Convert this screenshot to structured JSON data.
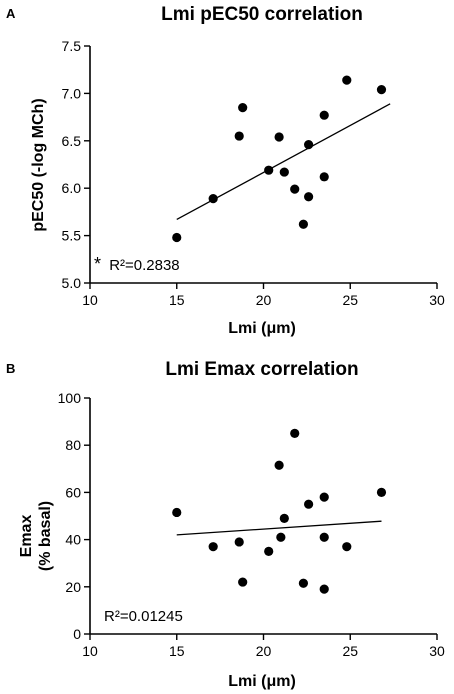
{
  "chart_data": [
    {
      "panel": "A",
      "type": "scatter",
      "title": "Lmi pEC50 correlation",
      "xlabel": "Lmi (μm)",
      "ylabel": "pEC50 (-log MCh)",
      "xlim": [
        10,
        30
      ],
      "ylim": [
        5.0,
        7.5
      ],
      "xticks": [
        "10",
        "15",
        "20",
        "25",
        "30"
      ],
      "yticks": [
        "5.0",
        "5.5",
        "6.0",
        "6.5",
        "7.0",
        "7.5"
      ],
      "points": [
        {
          "x": 15.0,
          "y": 5.48
        },
        {
          "x": 17.1,
          "y": 5.89
        },
        {
          "x": 18.6,
          "y": 6.55
        },
        {
          "x": 18.8,
          "y": 6.85
        },
        {
          "x": 20.3,
          "y": 6.19
        },
        {
          "x": 20.9,
          "y": 6.54
        },
        {
          "x": 21.2,
          "y": 6.17
        },
        {
          "x": 21.8,
          "y": 5.99
        },
        {
          "x": 22.3,
          "y": 5.62
        },
        {
          "x": 22.6,
          "y": 6.46
        },
        {
          "x": 22.6,
          "y": 5.91
        },
        {
          "x": 23.5,
          "y": 6.77
        },
        {
          "x": 23.5,
          "y": 6.12
        },
        {
          "x": 24.8,
          "y": 7.14
        },
        {
          "x": 26.8,
          "y": 7.04
        }
      ],
      "fit_line": {
        "x": [
          15.0,
          27.3
        ],
        "y": [
          5.67,
          6.89
        ]
      },
      "annotation_prefix": "*",
      "annotation": "R²=0.2838"
    },
    {
      "panel": "B",
      "type": "scatter",
      "title": "Lmi Emax correlation",
      "xlabel": "Lmi (μm)",
      "ylabel": "Emax",
      "ylabel_line2": "(% basal)",
      "xlim": [
        10,
        30
      ],
      "ylim": [
        0,
        100
      ],
      "xticks": [
        "10",
        "15",
        "20",
        "25",
        "30"
      ],
      "yticks": [
        "0",
        "20",
        "40",
        "60",
        "80",
        "100"
      ],
      "points": [
        {
          "x": 15.0,
          "y": 51.5
        },
        {
          "x": 17.1,
          "y": 37.0
        },
        {
          "x": 18.6,
          "y": 39.0
        },
        {
          "x": 18.8,
          "y": 22.0
        },
        {
          "x": 20.3,
          "y": 35.0
        },
        {
          "x": 20.9,
          "y": 71.5
        },
        {
          "x": 21.0,
          "y": 41.0
        },
        {
          "x": 21.2,
          "y": 49.0
        },
        {
          "x": 21.8,
          "y": 85.0
        },
        {
          "x": 22.3,
          "y": 21.5
        },
        {
          "x": 22.6,
          "y": 55.0
        },
        {
          "x": 23.5,
          "y": 58.0
        },
        {
          "x": 23.5,
          "y": 41.0
        },
        {
          "x": 23.5,
          "y": 19.0
        },
        {
          "x": 24.8,
          "y": 37.0
        },
        {
          "x": 26.8,
          "y": 60.0
        }
      ],
      "fit_line": {
        "x": [
          15.0,
          26.8
        ],
        "y": [
          42.0,
          47.8
        ]
      },
      "annotation_prefix": "",
      "annotation": "R²=0.01245"
    }
  ]
}
